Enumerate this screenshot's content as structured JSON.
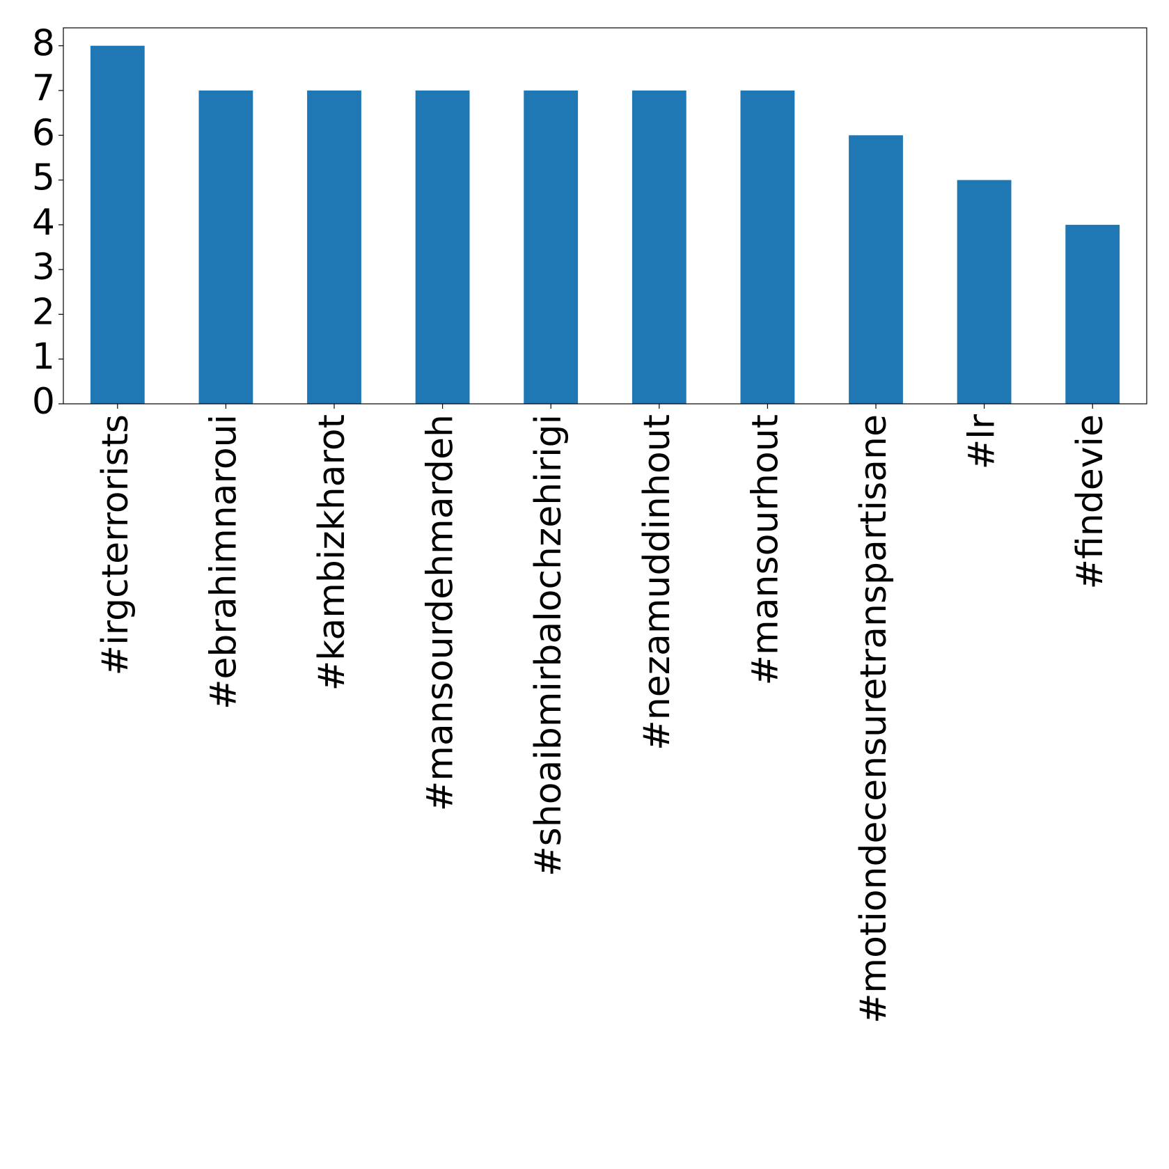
{
  "chart_data": {
    "type": "bar",
    "categories": [
      "#irgcterrorists",
      "#ebrahimnaroui",
      "#kambizkharot",
      "#mansourdehmardeh",
      "#shoaibmirbalochzehirigi",
      "#nezamuddinhout",
      "#mansourhout",
      "#motiondecensuretranspartisane",
      "#lr",
      "#findevie"
    ],
    "values": [
      8,
      7,
      7,
      7,
      7,
      7,
      7,
      6,
      5,
      4
    ],
    "color": "#1f77b4",
    "ylim": [
      0,
      8.4
    ],
    "yticks": [
      0,
      1,
      2,
      3,
      4,
      5,
      6,
      7,
      8
    ],
    "grid": false
  }
}
